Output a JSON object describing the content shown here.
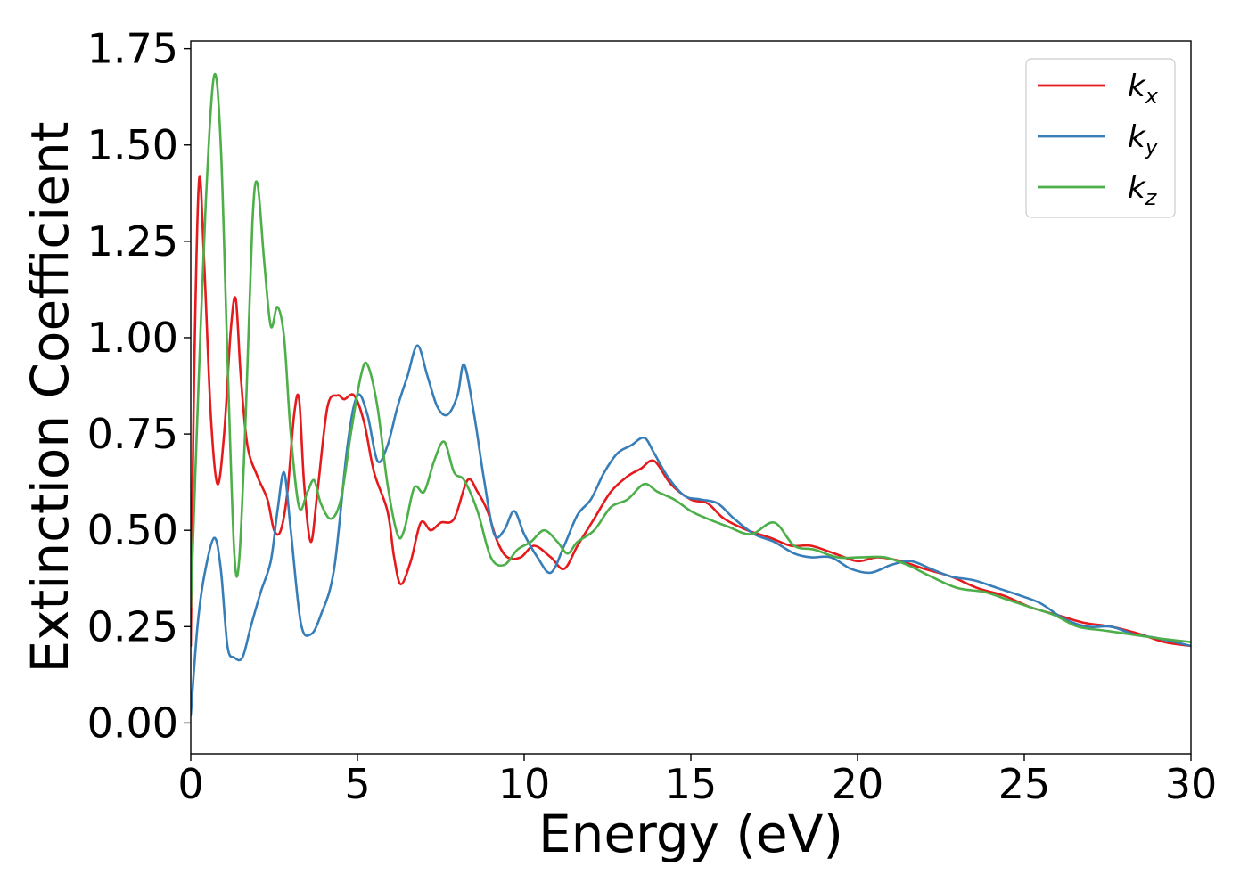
{
  "chart_data": {
    "type": "line",
    "title": "",
    "xlabel": "Energy (eV)",
    "ylabel": "Extinction Coefficient",
    "xlim": [
      0,
      30
    ],
    "ylim": [
      -0.08,
      1.77
    ],
    "xticks": [
      "0",
      "5",
      "10",
      "15",
      "20",
      "25",
      "30"
    ],
    "yticks": [
      "0.00",
      "0.25",
      "0.50",
      "0.75",
      "1.00",
      "1.25",
      "1.50",
      "1.75"
    ],
    "grid": false,
    "legend_position": "top-right",
    "series": [
      {
        "name": "k",
        "subscript": "x",
        "color": "#e41a1c",
        "points": [
          [
            0,
            0.2
          ],
          [
            0.1,
            0.9
          ],
          [
            0.25,
            1.41
          ],
          [
            0.4,
            1.2
          ],
          [
            0.6,
            0.8
          ],
          [
            0.8,
            0.62
          ],
          [
            1.0,
            0.75
          ],
          [
            1.2,
            1.02
          ],
          [
            1.35,
            1.1
          ],
          [
            1.5,
            0.9
          ],
          [
            1.7,
            0.72
          ],
          [
            2.0,
            0.64
          ],
          [
            2.3,
            0.58
          ],
          [
            2.5,
            0.5
          ],
          [
            2.7,
            0.5
          ],
          [
            2.9,
            0.6
          ],
          [
            3.1,
            0.8
          ],
          [
            3.25,
            0.84
          ],
          [
            3.4,
            0.62
          ],
          [
            3.6,
            0.47
          ],
          [
            3.8,
            0.6
          ],
          [
            4.1,
            0.82
          ],
          [
            4.4,
            0.85
          ],
          [
            4.6,
            0.84
          ],
          [
            4.9,
            0.85
          ],
          [
            5.2,
            0.78
          ],
          [
            5.5,
            0.65
          ],
          [
            5.9,
            0.55
          ],
          [
            6.1,
            0.43
          ],
          [
            6.3,
            0.36
          ],
          [
            6.6,
            0.42
          ],
          [
            6.9,
            0.52
          ],
          [
            7.2,
            0.5
          ],
          [
            7.5,
            0.52
          ],
          [
            7.9,
            0.53
          ],
          [
            8.3,
            0.63
          ],
          [
            8.6,
            0.6
          ],
          [
            8.9,
            0.55
          ],
          [
            9.2,
            0.47
          ],
          [
            9.5,
            0.43
          ],
          [
            9.9,
            0.43
          ],
          [
            10.3,
            0.46
          ],
          [
            10.8,
            0.43
          ],
          [
            11.2,
            0.4
          ],
          [
            11.6,
            0.46
          ],
          [
            12.1,
            0.53
          ],
          [
            12.6,
            0.6
          ],
          [
            13.1,
            0.64
          ],
          [
            13.5,
            0.66
          ],
          [
            13.9,
            0.68
          ],
          [
            14.4,
            0.62
          ],
          [
            15.0,
            0.58
          ],
          [
            15.5,
            0.57
          ],
          [
            16.0,
            0.53
          ],
          [
            16.7,
            0.5
          ],
          [
            17.4,
            0.48
          ],
          [
            18.0,
            0.46
          ],
          [
            18.6,
            0.46
          ],
          [
            19.3,
            0.44
          ],
          [
            20.0,
            0.42
          ],
          [
            20.6,
            0.43
          ],
          [
            21.3,
            0.42
          ],
          [
            22.0,
            0.4
          ],
          [
            22.8,
            0.38
          ],
          [
            23.6,
            0.35
          ],
          [
            24.4,
            0.33
          ],
          [
            25.2,
            0.3
          ],
          [
            26.0,
            0.28
          ],
          [
            26.8,
            0.26
          ],
          [
            27.6,
            0.25
          ],
          [
            28.5,
            0.23
          ],
          [
            29.2,
            0.21
          ],
          [
            30,
            0.2
          ]
        ]
      },
      {
        "name": "k",
        "subscript": "y",
        "color": "#377eb8",
        "points": [
          [
            0,
            0.02
          ],
          [
            0.2,
            0.25
          ],
          [
            0.4,
            0.38
          ],
          [
            0.7,
            0.48
          ],
          [
            0.9,
            0.4
          ],
          [
            1.1,
            0.2
          ],
          [
            1.3,
            0.17
          ],
          [
            1.55,
            0.17
          ],
          [
            1.8,
            0.25
          ],
          [
            2.1,
            0.34
          ],
          [
            2.4,
            0.42
          ],
          [
            2.6,
            0.55
          ],
          [
            2.8,
            0.65
          ],
          [
            3.0,
            0.5
          ],
          [
            3.3,
            0.26
          ],
          [
            3.6,
            0.23
          ],
          [
            3.9,
            0.28
          ],
          [
            4.3,
            0.4
          ],
          [
            4.7,
            0.72
          ],
          [
            5.0,
            0.85
          ],
          [
            5.3,
            0.8
          ],
          [
            5.6,
            0.68
          ],
          [
            5.9,
            0.72
          ],
          [
            6.2,
            0.82
          ],
          [
            6.5,
            0.9
          ],
          [
            6.8,
            0.98
          ],
          [
            7.1,
            0.9
          ],
          [
            7.4,
            0.82
          ],
          [
            7.7,
            0.8
          ],
          [
            8.0,
            0.85
          ],
          [
            8.2,
            0.93
          ],
          [
            8.5,
            0.8
          ],
          [
            8.8,
            0.63
          ],
          [
            9.1,
            0.49
          ],
          [
            9.4,
            0.5
          ],
          [
            9.7,
            0.55
          ],
          [
            10.0,
            0.49
          ],
          [
            10.4,
            0.43
          ],
          [
            10.8,
            0.39
          ],
          [
            11.2,
            0.46
          ],
          [
            11.6,
            0.54
          ],
          [
            12.0,
            0.58
          ],
          [
            12.4,
            0.65
          ],
          [
            12.8,
            0.7
          ],
          [
            13.2,
            0.72
          ],
          [
            13.6,
            0.74
          ],
          [
            13.9,
            0.7
          ],
          [
            14.3,
            0.64
          ],
          [
            14.8,
            0.59
          ],
          [
            15.3,
            0.58
          ],
          [
            15.8,
            0.57
          ],
          [
            16.3,
            0.53
          ],
          [
            16.9,
            0.49
          ],
          [
            17.5,
            0.47
          ],
          [
            18.1,
            0.44
          ],
          [
            18.6,
            0.43
          ],
          [
            19.2,
            0.43
          ],
          [
            19.8,
            0.4
          ],
          [
            20.4,
            0.39
          ],
          [
            21.0,
            0.41
          ],
          [
            21.6,
            0.42
          ],
          [
            22.2,
            0.4
          ],
          [
            22.8,
            0.38
          ],
          [
            23.5,
            0.37
          ],
          [
            24.2,
            0.35
          ],
          [
            24.9,
            0.33
          ],
          [
            25.5,
            0.31
          ],
          [
            26.2,
            0.27
          ],
          [
            26.9,
            0.25
          ],
          [
            27.6,
            0.25
          ],
          [
            28.3,
            0.23
          ],
          [
            29.0,
            0.22
          ],
          [
            30,
            0.2
          ]
        ]
      },
      {
        "name": "k",
        "subscript": "z",
        "color": "#4daf4a",
        "points": [
          [
            0,
            0.3
          ],
          [
            0.2,
            0.8
          ],
          [
            0.45,
            1.35
          ],
          [
            0.7,
            1.68
          ],
          [
            0.9,
            1.5
          ],
          [
            1.1,
            0.95
          ],
          [
            1.3,
            0.45
          ],
          [
            1.45,
            0.42
          ],
          [
            1.65,
            0.8
          ],
          [
            1.85,
            1.3
          ],
          [
            2.0,
            1.4
          ],
          [
            2.2,
            1.2
          ],
          [
            2.4,
            1.03
          ],
          [
            2.6,
            1.08
          ],
          [
            2.8,
            1.0
          ],
          [
            3.0,
            0.75
          ],
          [
            3.25,
            0.56
          ],
          [
            3.5,
            0.6
          ],
          [
            3.7,
            0.63
          ],
          [
            3.9,
            0.57
          ],
          [
            4.2,
            0.53
          ],
          [
            4.5,
            0.58
          ],
          [
            4.8,
            0.75
          ],
          [
            5.1,
            0.9
          ],
          [
            5.3,
            0.93
          ],
          [
            5.6,
            0.82
          ],
          [
            5.9,
            0.62
          ],
          [
            6.2,
            0.49
          ],
          [
            6.4,
            0.5
          ],
          [
            6.7,
            0.61
          ],
          [
            7.0,
            0.6
          ],
          [
            7.3,
            0.68
          ],
          [
            7.6,
            0.73
          ],
          [
            7.9,
            0.65
          ],
          [
            8.2,
            0.63
          ],
          [
            8.6,
            0.55
          ],
          [
            9.0,
            0.43
          ],
          [
            9.4,
            0.41
          ],
          [
            9.8,
            0.45
          ],
          [
            10.2,
            0.47
          ],
          [
            10.6,
            0.5
          ],
          [
            11.0,
            0.47
          ],
          [
            11.3,
            0.44
          ],
          [
            11.6,
            0.47
          ],
          [
            12.1,
            0.5
          ],
          [
            12.6,
            0.56
          ],
          [
            13.1,
            0.58
          ],
          [
            13.6,
            0.62
          ],
          [
            14.0,
            0.6
          ],
          [
            14.5,
            0.58
          ],
          [
            15.0,
            0.55
          ],
          [
            15.5,
            0.53
          ],
          [
            16.1,
            0.51
          ],
          [
            16.8,
            0.49
          ],
          [
            17.5,
            0.52
          ],
          [
            18.1,
            0.46
          ],
          [
            18.7,
            0.45
          ],
          [
            19.4,
            0.43
          ],
          [
            20.1,
            0.43
          ],
          [
            20.8,
            0.43
          ],
          [
            21.5,
            0.41
          ],
          [
            22.2,
            0.38
          ],
          [
            23.0,
            0.35
          ],
          [
            23.8,
            0.34
          ],
          [
            24.5,
            0.32
          ],
          [
            25.2,
            0.3
          ],
          [
            25.9,
            0.28
          ],
          [
            26.6,
            0.25
          ],
          [
            27.4,
            0.24
          ],
          [
            28.2,
            0.23
          ],
          [
            29.0,
            0.22
          ],
          [
            30,
            0.21
          ]
        ]
      }
    ]
  }
}
